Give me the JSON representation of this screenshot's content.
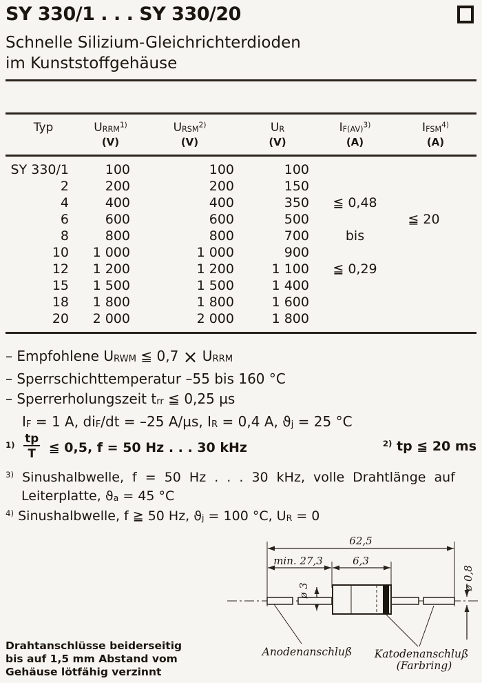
{
  "colors": {
    "ink": "#1b1610",
    "paper": "#f7f5f1"
  },
  "header": {
    "title": "SY 330/1 . . . SY 330/20",
    "subtitle_line1": "Schnelle Silizium-Gleichrichterdioden",
    "subtitle_line2": "im Kunststoffgehäuse"
  },
  "table": {
    "headers": [
      {
        "sym": [
          {
            "t": "Typ"
          }
        ],
        "unit": ""
      },
      {
        "sym": [
          {
            "t": "U"
          },
          {
            "t": "RRM",
            "s": "sub"
          },
          {
            "t": "1)",
            "s": "sup"
          }
        ],
        "unit": "(V)"
      },
      {
        "sym": [
          {
            "t": "U"
          },
          {
            "t": "RSM",
            "s": "sub"
          },
          {
            "t": "2)",
            "s": "sup"
          }
        ],
        "unit": "(V)"
      },
      {
        "sym": [
          {
            "t": "U"
          },
          {
            "t": "R",
            "s": "sub"
          }
        ],
        "unit": "(V)"
      },
      {
        "sym": [
          {
            "t": "I"
          },
          {
            "t": "F(AV)",
            "s": "sub"
          },
          {
            "t": "3)",
            "s": "sup"
          }
        ],
        "unit": "(A)"
      },
      {
        "sym": [
          {
            "t": "I"
          },
          {
            "t": "FSM",
            "s": "sub"
          },
          {
            "t": "4)",
            "s": "sup"
          }
        ],
        "unit": "(A)"
      }
    ],
    "rows": [
      {
        "typ": "SY 330/1",
        "urrm": "100",
        "ursm": "100",
        "ur": "100",
        "ifav": "",
        "ifsm": ""
      },
      {
        "typ": "2",
        "urrm": "200",
        "ursm": "200",
        "ur": "150",
        "ifav": "",
        "ifsm": ""
      },
      {
        "typ": "4",
        "urrm": "400",
        "ursm": "400",
        "ur": "350",
        "ifav": "≦ 0,48",
        "ifsm": ""
      },
      {
        "typ": "6",
        "urrm": "600",
        "ursm": "600",
        "ur": "500",
        "ifav": "",
        "ifsm": "≦ 20"
      },
      {
        "typ": "8",
        "urrm": "800",
        "ursm": "800",
        "ur": "700",
        "ifav": "bis",
        "ifsm": ""
      },
      {
        "typ": "10",
        "urrm": "1 000",
        "ursm": "1 000",
        "ur": "900",
        "ifav": "",
        "ifsm": ""
      },
      {
        "typ": "12",
        "urrm": "1 200",
        "ursm": "1 200",
        "ur": "1 100",
        "ifav": "≦ 0,29",
        "ifsm": ""
      },
      {
        "typ": "15",
        "urrm": "1 500",
        "ursm": "1 500",
        "ur": "1 400",
        "ifav": "",
        "ifsm": ""
      },
      {
        "typ": "18",
        "urrm": "1 800",
        "ursm": "1 800",
        "ur": "1 600",
        "ifav": "",
        "ifsm": ""
      },
      {
        "typ": "20",
        "urrm": "2 000",
        "ursm": "2 000",
        "ur": "1 800",
        "ifav": "",
        "ifsm": ""
      }
    ]
  },
  "notes": [
    [
      {
        "t": "– Empfohlene U"
      },
      {
        "t": "RWM",
        "s": "sub"
      },
      {
        "t": " ≦ 0,7 "
      },
      {
        "t": "×",
        "s": "big"
      },
      {
        "t": " U"
      },
      {
        "t": "RRM",
        "s": "sub"
      }
    ],
    [
      {
        "t": "– Sperrschichttemperatur –55 bis 160 °C"
      }
    ],
    [
      {
        "t": "– Sperrerholungszeit t"
      },
      {
        "t": "rr",
        "s": "sub"
      },
      {
        "t": " ≦ 0,25 µs"
      }
    ],
    [
      {
        "t": "I"
      },
      {
        "t": "F",
        "s": "sub"
      },
      {
        "t": " = 1 A,  di"
      },
      {
        "t": "F",
        "s": "sub"
      },
      {
        "t": "/dt = –25 A/µs, I"
      },
      {
        "t": "R",
        "s": "sub"
      },
      {
        "t": " = 0,4 A, ϑ"
      },
      {
        "t": "j",
        "s": "sub"
      },
      {
        "t": " = 25 °C"
      }
    ]
  ],
  "footnotes": {
    "fn1": [
      {
        "t": "1)",
        "s": "sup"
      },
      {
        "t": " "
      },
      {
        "frac": [
          "tp",
          "T"
        ]
      },
      {
        "t": " ≦ 0,5, f = 50 Hz . . . 30 kHz"
      }
    ],
    "fn2": [
      {
        "t": "2)",
        "s": "sup"
      },
      {
        "t": " tp ≦ 20 ms"
      }
    ],
    "fn3a": [
      {
        "t": "3)",
        "s": "sup"
      },
      {
        "t": " Sinushalbwelle, f = 50 Hz . . . 30 kHz, volle Drahtlänge auf"
      }
    ],
    "fn3b": [
      {
        "t": "Leiterplatte, ϑ"
      },
      {
        "t": "a",
        "s": "sub"
      },
      {
        "t": " = 45 °C"
      }
    ],
    "fn4": [
      {
        "t": "4)",
        "s": "sup"
      },
      {
        "t": " Sinushalbwelle, f ≧ 50 Hz,  ϑ"
      },
      {
        "t": "j",
        "s": "sub"
      },
      {
        "t": " = 100 °C, U"
      },
      {
        "t": "R",
        "s": "sub"
      },
      {
        "t": " = 0"
      }
    ]
  },
  "diagram": {
    "dim_total": "62,5",
    "dim_lead": "min. 27,3",
    "dim_body": "6,3",
    "dim_dia_body": "ø 3",
    "dim_dia_wire": "ø 0,8",
    "label_anode": "Anodenanschluß",
    "label_cathode": "Katodenanschluß",
    "label_cathode_sub": "(Farbring)"
  },
  "footer": {
    "lines": [
      "Drahtanschlüsse beiderseitig",
      "bis auf 1,5 mm Abstand vom",
      "Gehäuse lötfähig verzinnt"
    ]
  }
}
